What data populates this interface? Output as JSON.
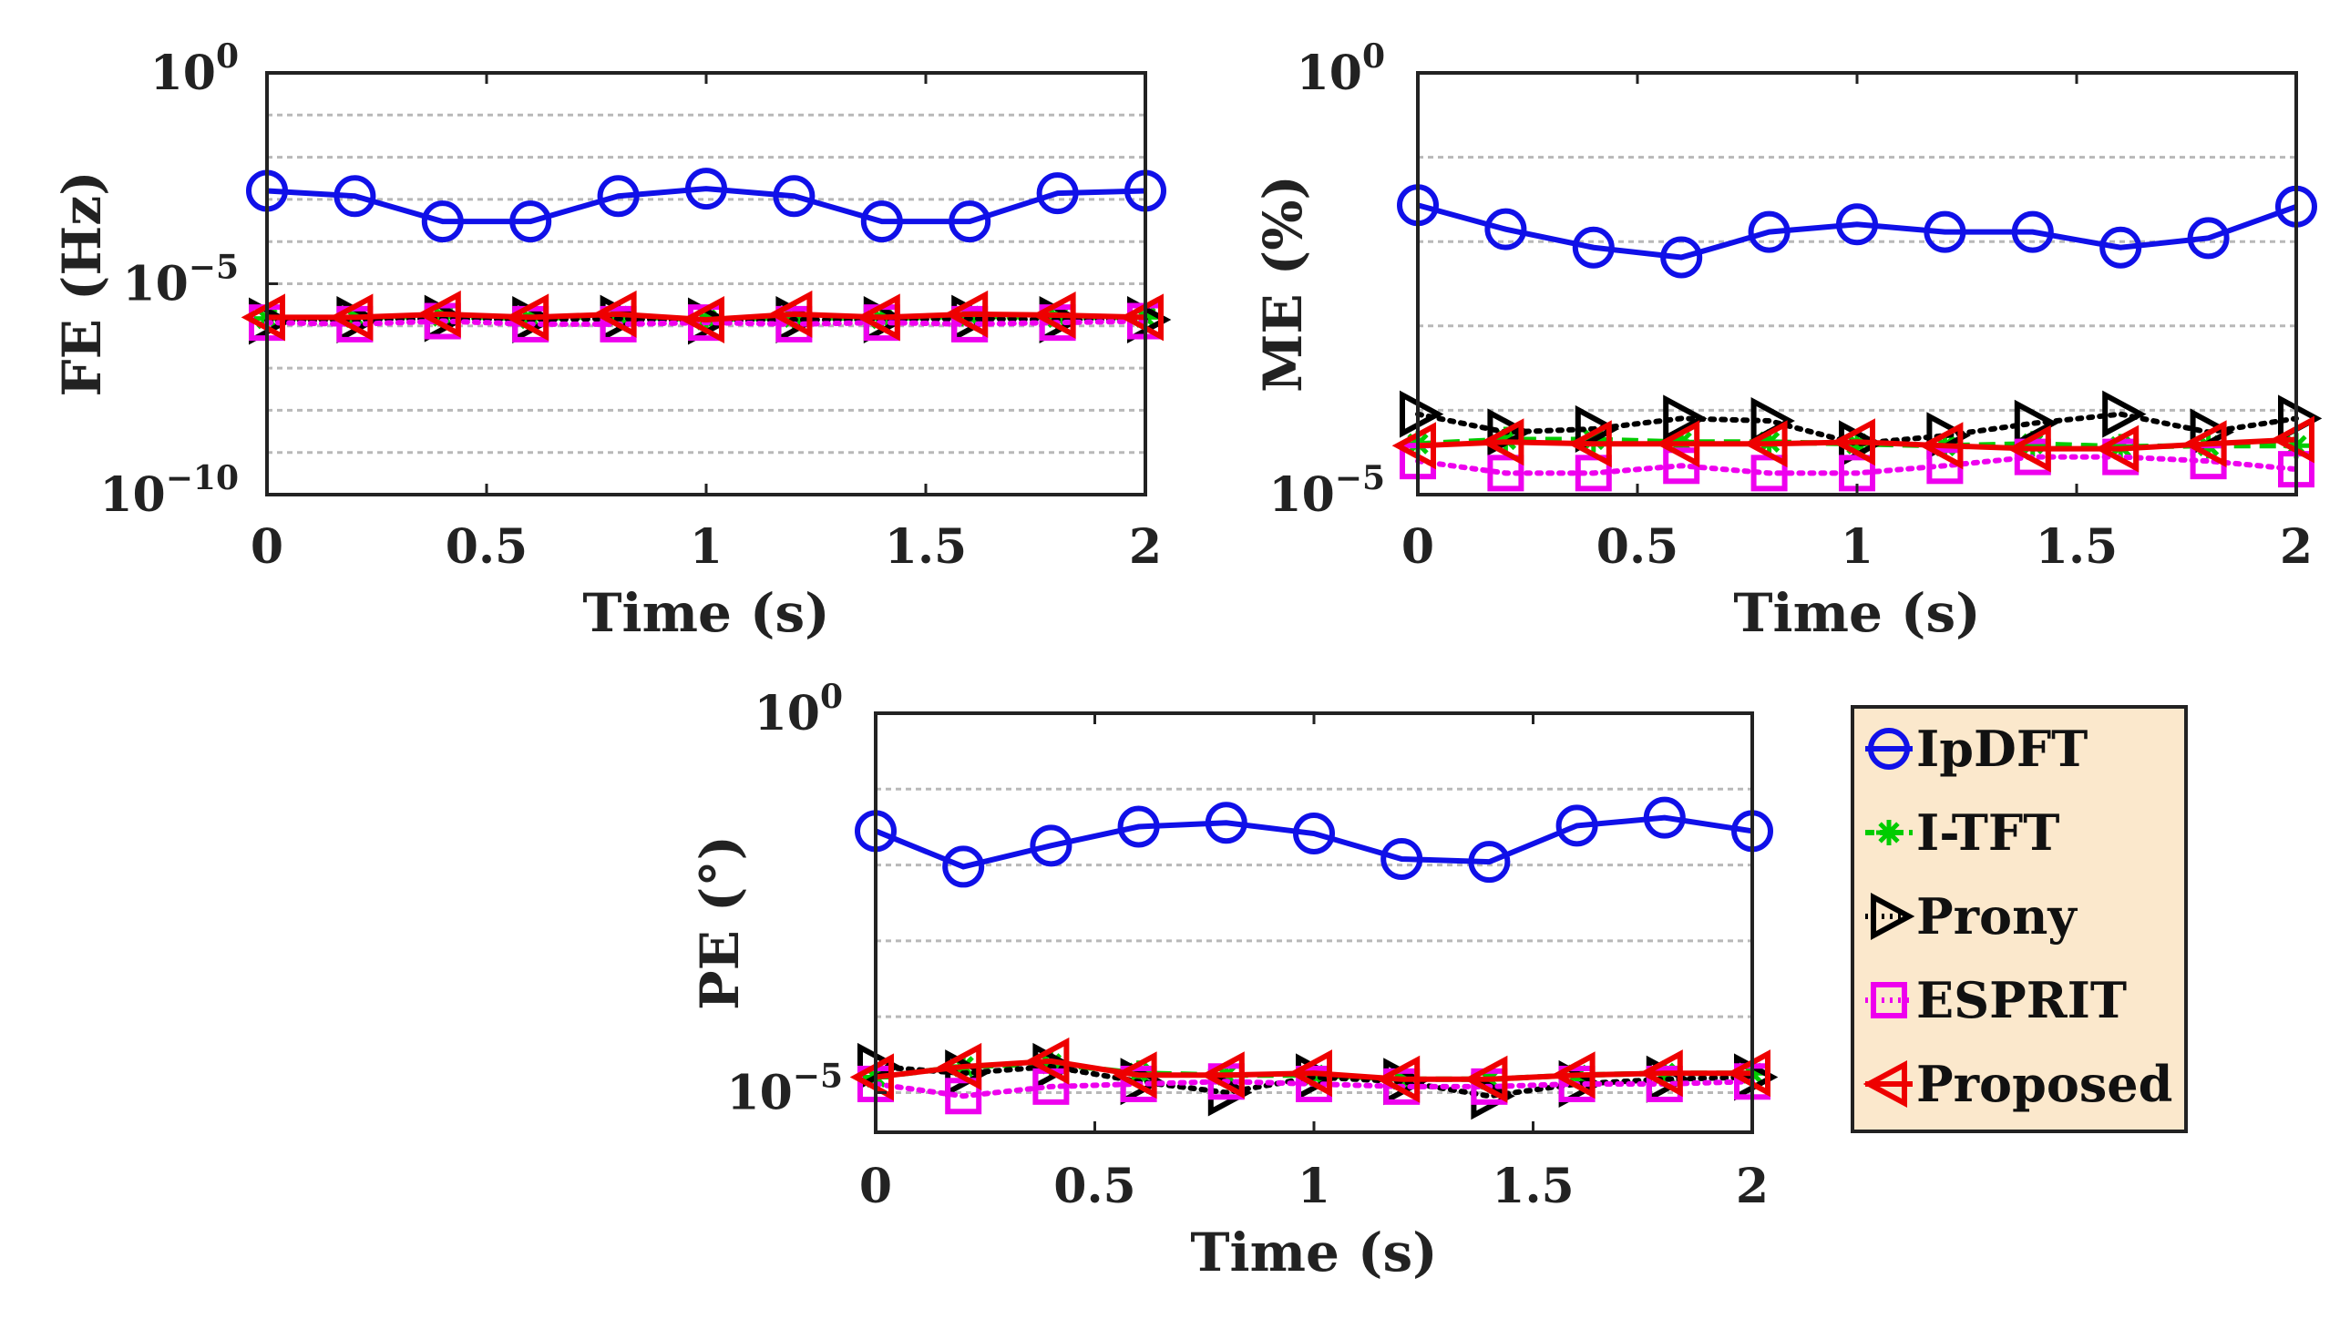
{
  "chart_data": [
    {
      "id": "fe",
      "type": "line",
      "yscale": "log",
      "ylabel": "FE (Hz)",
      "xlabel": "Time (s)",
      "xlim": [
        0,
        2
      ],
      "ylim": [
        1e-10,
        1
      ],
      "xticks": [
        0,
        0.5,
        1,
        1.5,
        2
      ],
      "xtick_labels": [
        "0",
        "0.5",
        "1",
        "1.5",
        "2"
      ],
      "yticks": [
        {
          "value": 1,
          "base": "10",
          "exp": "0"
        },
        {
          "value": 1e-05,
          "base": "10",
          "exp": "−5"
        },
        {
          "value": 1e-10,
          "base": "10",
          "exp": "−10"
        }
      ],
      "grid_y": [
        1,
        0.1,
        0.01,
        0.001,
        0.0001,
        1e-05,
        1e-06,
        1e-07,
        1e-08,
        1e-09,
        1e-10
      ],
      "x": [
        0,
        0.2,
        0.4,
        0.6,
        0.8,
        1.0,
        1.2,
        1.4,
        1.6,
        1.8,
        2.0
      ],
      "series": [
        {
          "name": "IpDFT",
          "values": [
            0.0016,
            0.0012,
            0.0003,
            0.0003,
            0.0012,
            0.0018,
            0.0012,
            0.0003,
            0.0003,
            0.0014,
            0.0016
          ]
        },
        {
          "name": "I-TFT",
          "values": [
            1.5e-06,
            1.6e-06,
            1.7e-06,
            1.5e-06,
            1.7e-06,
            1.4e-06,
            1.6e-06,
            1.5e-06,
            1.7e-06,
            1.6e-06,
            1.6e-06
          ]
        },
        {
          "name": "Prony",
          "values": [
            1.3e-06,
            1.4e-06,
            1.5e-06,
            1.4e-06,
            1.5e-06,
            1.3e-06,
            1.4e-06,
            1.4e-06,
            1.5e-06,
            1.4e-06,
            1.4e-06
          ]
        },
        {
          "name": "ESPRIT",
          "values": [
            1.2e-06,
            1.1e-06,
            1.3e-06,
            1.1e-06,
            1.1e-06,
            1.2e-06,
            1.1e-06,
            1.2e-06,
            1.1e-06,
            1.2e-06,
            1.3e-06
          ]
        },
        {
          "name": "Proposed",
          "values": [
            1.6e-06,
            1.6e-06,
            1.9e-06,
            1.6e-06,
            1.9e-06,
            1.4e-06,
            1.9e-06,
            1.6e-06,
            1.9e-06,
            1.8e-06,
            1.6e-06
          ]
        }
      ]
    },
    {
      "id": "me",
      "type": "line",
      "yscale": "log",
      "ylabel": "ME (%)",
      "xlabel": "Time (s)",
      "xlim": [
        0,
        2
      ],
      "ylim": [
        1e-05,
        1
      ],
      "xticks": [
        0,
        0.5,
        1,
        1.5,
        2
      ],
      "xtick_labels": [
        "0",
        "0.5",
        "1",
        "1.5",
        "2"
      ],
      "yticks": [
        {
          "value": 1,
          "base": "10",
          "exp": "0"
        },
        {
          "value": 1e-05,
          "base": "10",
          "exp": "−5"
        }
      ],
      "grid_y": [
        1,
        0.1,
        0.01,
        0.001,
        0.0001,
        1e-05
      ],
      "x": [
        0,
        0.2,
        0.4,
        0.6,
        0.8,
        1.0,
        1.2,
        1.4,
        1.6,
        1.8,
        2.0
      ],
      "series": [
        {
          "name": "IpDFT",
          "values": [
            0.027,
            0.014,
            0.0085,
            0.0065,
            0.013,
            0.016,
            0.013,
            0.013,
            0.0085,
            0.011,
            0.026
          ]
        },
        {
          "name": "I-TFT",
          "values": [
            4e-05,
            4.5e-05,
            4.5e-05,
            4.2e-05,
            4.2e-05,
            4e-05,
            3.8e-05,
            4e-05,
            3.7e-05,
            3.8e-05,
            3.8e-05
          ]
        },
        {
          "name": "Prony",
          "values": [
            9e-05,
            5.5e-05,
            6e-05,
            8e-05,
            7.5e-05,
            4e-05,
            5e-05,
            7e-05,
            9e-05,
            5.5e-05,
            8e-05
          ]
        },
        {
          "name": "ESPRIT",
          "values": [
            2.5e-05,
            1.8e-05,
            1.8e-05,
            2.2e-05,
            1.8e-05,
            1.8e-05,
            2.2e-05,
            2.8e-05,
            2.8e-05,
            2.5e-05,
            2e-05
          ]
        },
        {
          "name": "Proposed",
          "values": [
            3.8e-05,
            4.2e-05,
            4e-05,
            4e-05,
            4e-05,
            4.2e-05,
            3.8e-05,
            3.5e-05,
            3.5e-05,
            4e-05,
            4.5e-05
          ]
        }
      ]
    },
    {
      "id": "pe",
      "type": "line",
      "yscale": "log",
      "ylabel": "PE (°)",
      "xlabel": "Time (s)",
      "xlim": [
        0,
        2
      ],
      "ylim": [
        3e-06,
        1
      ],
      "xticks": [
        0,
        0.5,
        1,
        1.5,
        2
      ],
      "xtick_labels": [
        "0",
        "0.5",
        "1",
        "1.5",
        "2"
      ],
      "yticks": [
        {
          "value": 1,
          "base": "10",
          "exp": "0"
        },
        {
          "value": 1e-05,
          "base": "10",
          "exp": "−5"
        }
      ],
      "grid_y": [
        1,
        0.1,
        0.01,
        0.001,
        0.0001,
        1e-05
      ],
      "x": [
        0,
        0.2,
        0.4,
        0.6,
        0.8,
        1.0,
        1.2,
        1.4,
        1.6,
        1.8,
        2.0
      ],
      "series": [
        {
          "name": "IpDFT",
          "values": [
            0.028,
            0.0095,
            0.018,
            0.032,
            0.036,
            0.026,
            0.012,
            0.011,
            0.033,
            0.042,
            0.028
          ]
        },
        {
          "name": "I-TFT",
          "values": [
            1.6e-05,
            2.2e-05,
            2.4e-05,
            1.8e-05,
            1.7e-05,
            1.7e-05,
            1.5e-05,
            1.5e-05,
            1.7e-05,
            1.8e-05,
            1.8e-05
          ]
        },
        {
          "name": "Prony",
          "values": [
            2.2e-05,
            1.8e-05,
            2.2e-05,
            1.4e-05,
            1e-05,
            1.6e-05,
            1.4e-05,
            9e-06,
            1.3e-05,
            1.5e-05,
            1.6e-05
          ]
        },
        {
          "name": "ESPRIT",
          "values": [
            1.3e-05,
            9e-06,
            1.2e-05,
            1.3e-05,
            1.4e-05,
            1.3e-05,
            1.2e-05,
            1.2e-05,
            1.3e-05,
            1.3e-05,
            1.4e-05
          ]
        },
        {
          "name": "Proposed",
          "values": [
            1.6e-05,
            2.2e-05,
            2.6e-05,
            1.7e-05,
            1.7e-05,
            1.8e-05,
            1.5e-05,
            1.5e-05,
            1.7e-05,
            1.8e-05,
            1.8e-05
          ]
        }
      ]
    }
  ],
  "legend": {
    "placement": "bottom-right",
    "items": [
      {
        "name": "IpDFT",
        "color": "#1010e8",
        "marker": "circle",
        "dash": "solid"
      },
      {
        "name": "I-TFT",
        "color": "#00cc00",
        "marker": "star",
        "dash": "dashed"
      },
      {
        "name": "Prony",
        "color": "#000000",
        "marker": "triangle-right",
        "dash": "dotted"
      },
      {
        "name": "ESPRIT",
        "color": "#ee00ee",
        "marker": "square",
        "dash": "dotted"
      },
      {
        "name": "Proposed",
        "color": "#ee0000",
        "marker": "triangle-left",
        "dash": "solid"
      }
    ],
    "background": "#fbe8cc"
  }
}
